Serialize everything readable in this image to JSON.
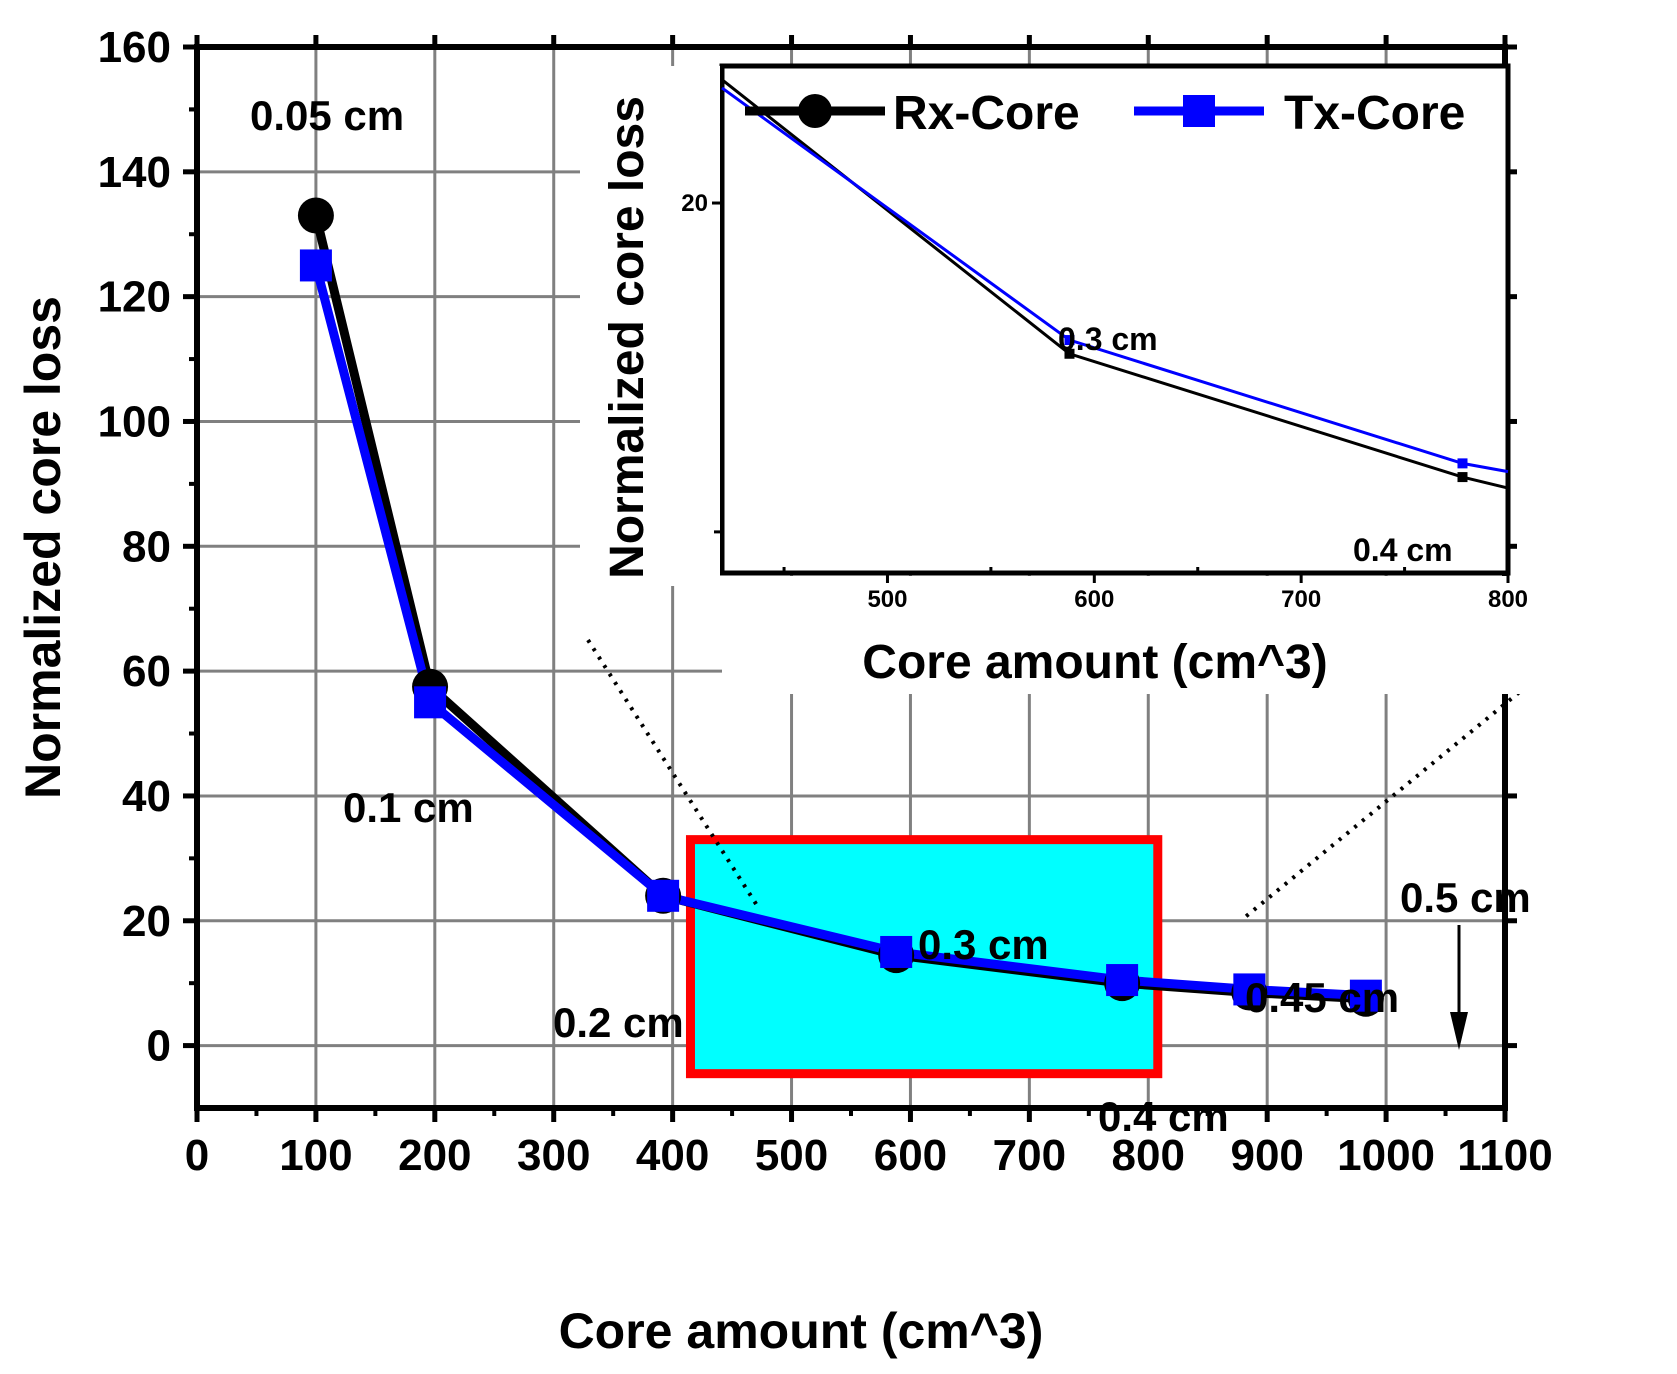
{
  "chart_data": {
    "type": "line",
    "title": "",
    "xlabel": "Core amount (cm^3)",
    "ylabel": "Normalized core loss",
    "xlim": [
      0,
      1100
    ],
    "ylim": [
      -10,
      160
    ],
    "xticks": [
      "0",
      "100",
      "200",
      "300",
      "400",
      "500",
      "600",
      "700",
      "800",
      "900",
      "1000",
      "1100"
    ],
    "yticks": [
      "0",
      "20",
      "40",
      "60",
      "80",
      "100",
      "120",
      "140",
      "160"
    ],
    "grid": true,
    "legend_position": "inset-top",
    "colors": {
      "rx": "#000000",
      "tx": "#0000ff",
      "box_fill": "#00ffff",
      "box_border": "#ff0000",
      "grid": "#808080"
    },
    "series": [
      {
        "name": "Rx-Core",
        "marker": "circle",
        "x": [
          100,
          196,
          392,
          588,
          778,
          885,
          983
        ],
        "y": [
          133,
          57.5,
          24,
          14.5,
          10,
          8.5,
          7.5
        ]
      },
      {
        "name": "Tx-Core",
        "marker": "square",
        "x": [
          100,
          196,
          392,
          588,
          778,
          885,
          983
        ],
        "y": [
          125,
          55,
          24,
          15,
          10.5,
          9,
          8
        ]
      }
    ],
    "annotations": [
      {
        "text": "0.05 cm",
        "x": 100,
        "y": 150
      },
      {
        "text": "0.1 cm",
        "x": 196,
        "y": 46
      },
      {
        "text": "0.2 cm",
        "x": 392,
        "y": 15
      },
      {
        "text": "0.3 cm",
        "x": 588,
        "y": 26
      },
      {
        "text": "0.4 cm",
        "x": 778,
        "y": -1
      },
      {
        "text": "0.45 cm",
        "x": 885,
        "y": 18
      },
      {
        "text": "0.5 cm",
        "x": 983,
        "y": 33
      }
    ],
    "highlight_region": {
      "x": [
        415,
        808
      ],
      "y": [
        -4.5,
        33
      ]
    },
    "inset": {
      "xlabel": "Core amount (cm^3)",
      "ylabel": "Normalized core loss",
      "xlim": [
        420,
        800
      ],
      "ylim": [
        6.5,
        25
      ],
      "xticks": [
        "500",
        "600",
        "700",
        "800"
      ],
      "yticks": [
        "20"
      ],
      "annotations": [
        {
          "text": "0.3 cm",
          "x": 588,
          "y": 17
        },
        {
          "text": "0.4 cm",
          "x": 778,
          "y": 6.6
        }
      ],
      "series": [
        {
          "name": "Rx-Core",
          "x": [
            420,
            588,
            778,
            800
          ],
          "y": [
            24.5,
            14.5,
            10,
            9.6
          ]
        },
        {
          "name": "Tx-Core",
          "x": [
            420,
            588,
            778,
            800
          ],
          "y": [
            24.2,
            15,
            10.5,
            10.2
          ]
        }
      ]
    }
  }
}
